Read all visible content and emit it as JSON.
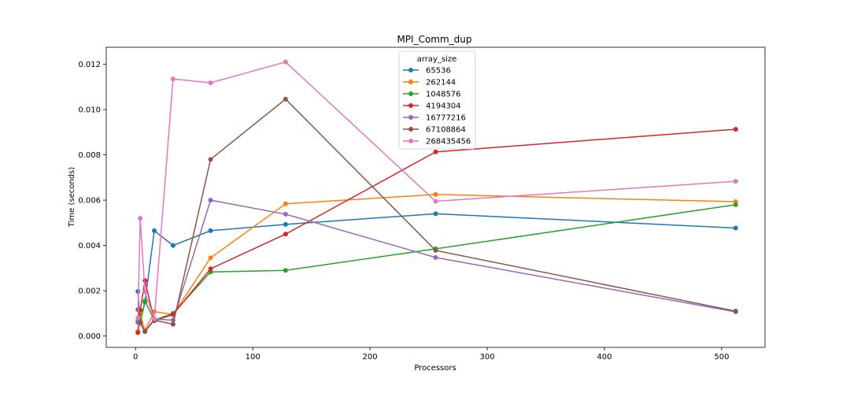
{
  "chart_data": {
    "type": "line",
    "title": "MPI_Comm_dup",
    "xlabel": "Processors",
    "ylabel": "Time (seconds)",
    "xlim": [
      -25,
      537
    ],
    "ylim": [
      -0.0005,
      0.01275
    ],
    "xticks": [
      0,
      100,
      200,
      300,
      400,
      500
    ],
    "yticks": [
      0.0,
      0.002,
      0.004,
      0.006,
      0.008,
      0.01,
      0.012
    ],
    "ytick_labels": [
      "0.000",
      "0.002",
      "0.004",
      "0.006",
      "0.008",
      "0.010",
      "0.012"
    ],
    "grid": false,
    "legend": {
      "title": "array_size",
      "placement": "top-center"
    },
    "x": [
      2,
      4,
      8,
      16,
      32,
      64,
      128,
      256,
      512
    ],
    "series": [
      {
        "name": "65536",
        "color": "#1f77b4",
        "values": [
          0.00197,
          0.0006,
          0.0015,
          0.00465,
          0.004,
          0.00465,
          0.00493,
          0.0054,
          0.00477
        ]
      },
      {
        "name": "262144",
        "color": "#ff7f0e",
        "values": [
          0.0002,
          0.00095,
          0.00025,
          0.00108,
          0.00095,
          0.00345,
          0.00584,
          0.00625,
          0.00593
        ]
      },
      {
        "name": "1048576",
        "color": "#2ca02c",
        "values": [
          0.00065,
          0.0006,
          0.00155,
          0.0007,
          0.001,
          0.00283,
          0.0029,
          0.00385,
          0.0058
        ]
      },
      {
        "name": "4194304",
        "color": "#d62728",
        "values": [
          0.00015,
          0.00115,
          0.00245,
          0.00068,
          0.00095,
          0.00297,
          0.0045,
          0.00813,
          0.00913
        ]
      },
      {
        "name": "16777216",
        "color": "#9467bd",
        "values": [
          0.0006,
          0.00055,
          0.0002,
          0.00075,
          0.0007,
          0.006,
          0.00538,
          0.00347,
          0.00107
        ]
      },
      {
        "name": "67108864",
        "color": "#8c564b",
        "values": [
          0.00117,
          0.0006,
          0.0002,
          0.0007,
          0.00052,
          0.0078,
          0.01046,
          0.00378,
          0.0011
        ]
      },
      {
        "name": "268435456",
        "color": "#e377c2",
        "values": [
          0.0008,
          0.0052,
          0.00195,
          0.00075,
          0.01135,
          0.01118,
          0.0121,
          0.00595,
          0.00683
        ]
      }
    ]
  }
}
